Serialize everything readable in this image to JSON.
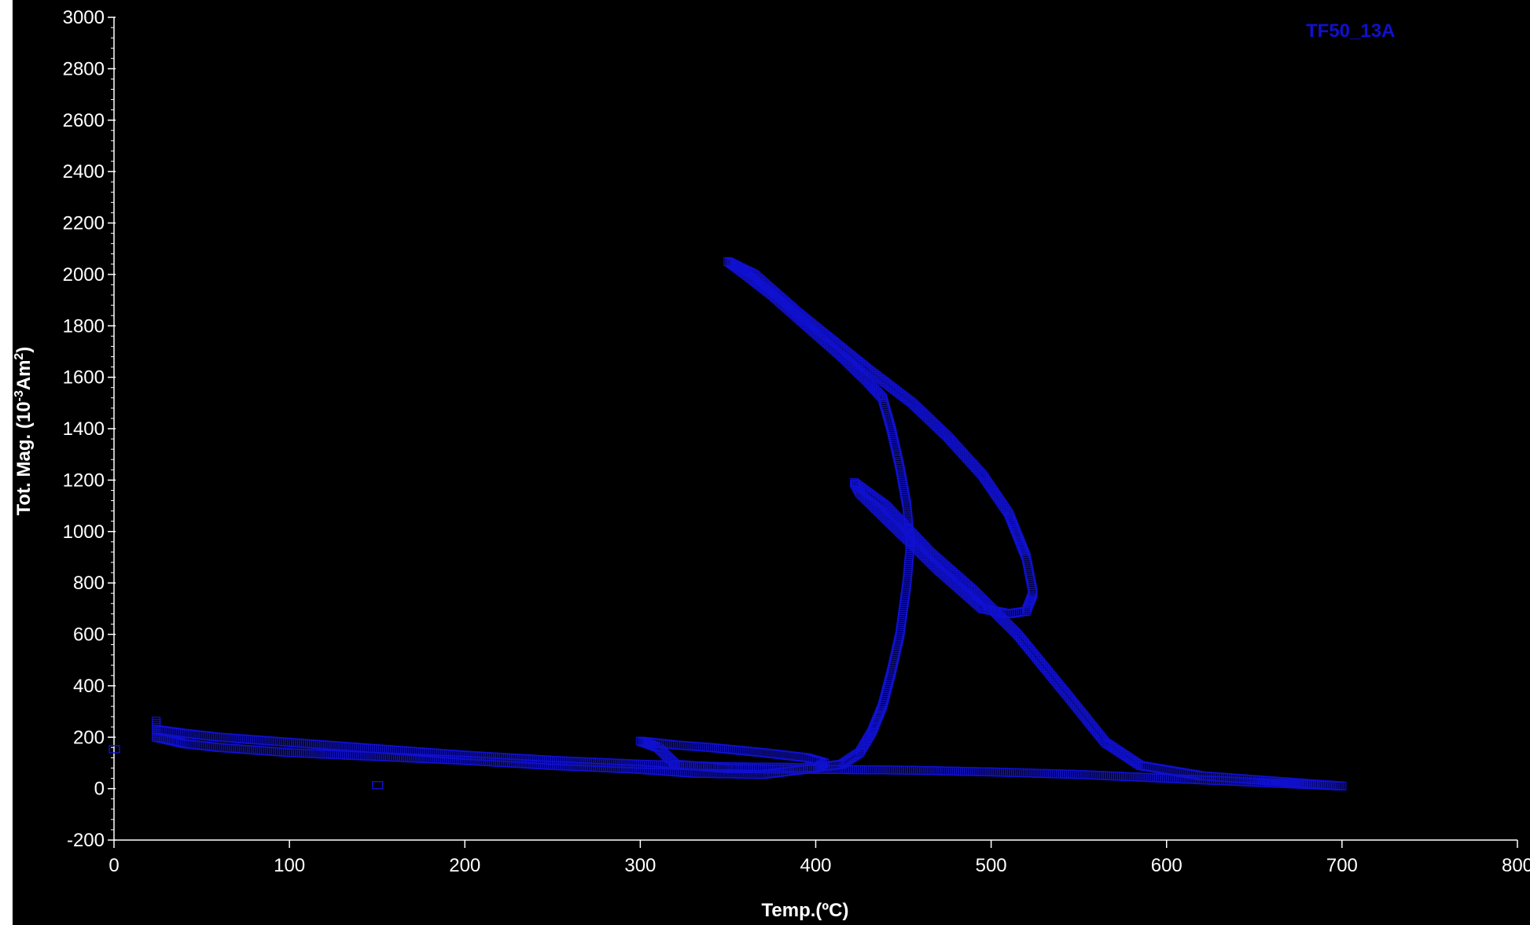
{
  "chart_data": {
    "type": "scatter",
    "title": "",
    "xlabel": "Temp.(ºC)",
    "ylabel_parts": [
      "Tot. Mag. (10",
      "-3",
      "Am",
      "2",
      ")"
    ],
    "xlim": [
      0,
      800
    ],
    "ylim": [
      -200,
      3000
    ],
    "x_ticks": [
      "0",
      "100",
      "200",
      "300",
      "400",
      "500",
      "600",
      "700",
      "800"
    ],
    "y_ticks": [
      "-200",
      "0",
      "200",
      "400",
      "600",
      "800",
      "1000",
      "1200",
      "1400",
      "1600",
      "1800",
      "2000",
      "2200",
      "2400",
      "2600",
      "2800",
      "3000"
    ],
    "grid": false,
    "legend_position": "top-right",
    "marker": "open-square",
    "colors": {
      "background": "#000000",
      "axis": "#ffffff",
      "series": "#1010d0"
    },
    "series": [
      {
        "name": "TF50_13A",
        "segments": [
          [
            [
              24,
              230
            ],
            [
              40,
              215
            ],
            [
              60,
              200
            ],
            [
              80,
              190
            ],
            [
              100,
              180
            ],
            [
              130,
              165
            ],
            [
              160,
              150
            ],
            [
              200,
              130
            ],
            [
              250,
              110
            ],
            [
              300,
              95
            ],
            [
              350,
              85
            ],
            [
              400,
              82
            ],
            [
              415,
              95
            ],
            [
              425,
              140
            ],
            [
              432,
              220
            ],
            [
              438,
              320
            ],
            [
              443,
              450
            ],
            [
              448,
              600
            ],
            [
              452,
              800
            ],
            [
              454,
              950
            ],
            [
              452,
              1100
            ],
            [
              448,
              1250
            ],
            [
              443,
              1400
            ],
            [
              438,
              1520
            ]
          ],
          [
            [
              438,
              1520
            ],
            [
              430,
              1580
            ],
            [
              415,
              1680
            ],
            [
              395,
              1800
            ],
            [
              375,
              1920
            ],
            [
              360,
              2000
            ],
            [
              350,
              2050
            ]
          ],
          [
            [
              350,
              2050
            ],
            [
              365,
              2000
            ],
            [
              390,
              1850
            ],
            [
              410,
              1740
            ],
            [
              430,
              1630
            ],
            [
              455,
              1500
            ],
            [
              475,
              1370
            ],
            [
              495,
              1220
            ],
            [
              510,
              1070
            ],
            [
              520,
              900
            ],
            [
              524,
              760
            ],
            [
              520,
              690
            ],
            [
              510,
              680
            ],
            [
              495,
              700
            ],
            [
              485,
              760
            ],
            [
              470,
              850
            ],
            [
              455,
              950
            ],
            [
              440,
              1050
            ],
            [
              425,
              1150
            ],
            [
              422,
              1190
            ]
          ],
          [
            [
              422,
              1190
            ],
            [
              440,
              1100
            ],
            [
              465,
              920
            ],
            [
              490,
              770
            ],
            [
              515,
              600
            ],
            [
              545,
              350
            ],
            [
              565,
              180
            ],
            [
              585,
              90
            ],
            [
              620,
              50
            ],
            [
              660,
              30
            ],
            [
              700,
              10
            ]
          ],
          [
            [
              700,
              10
            ],
            [
              650,
              25
            ],
            [
              600,
              40
            ],
            [
              550,
              55
            ],
            [
              500,
              65
            ],
            [
              450,
              72
            ],
            [
              400,
              75
            ],
            [
              350,
              78
            ],
            [
              320,
              95
            ],
            [
              310,
              160
            ],
            [
              300,
              185
            ],
            [
              320,
              170
            ],
            [
              340,
              160
            ],
            [
              370,
              140
            ],
            [
              395,
              120
            ],
            [
              405,
              100
            ],
            [
              400,
              80
            ],
            [
              370,
              55
            ],
            [
              330,
              60
            ],
            [
              300,
              75
            ],
            [
              250,
              90
            ],
            [
              200,
              110
            ],
            [
              150,
              125
            ],
            [
              100,
              140
            ],
            [
              60,
              160
            ],
            [
              40,
              175
            ],
            [
              24,
              200
            ],
            [
              24,
              270
            ]
          ]
        ],
        "scattered_points": [
          [
            0,
            155
          ],
          [
            150,
            15
          ]
        ]
      }
    ]
  }
}
